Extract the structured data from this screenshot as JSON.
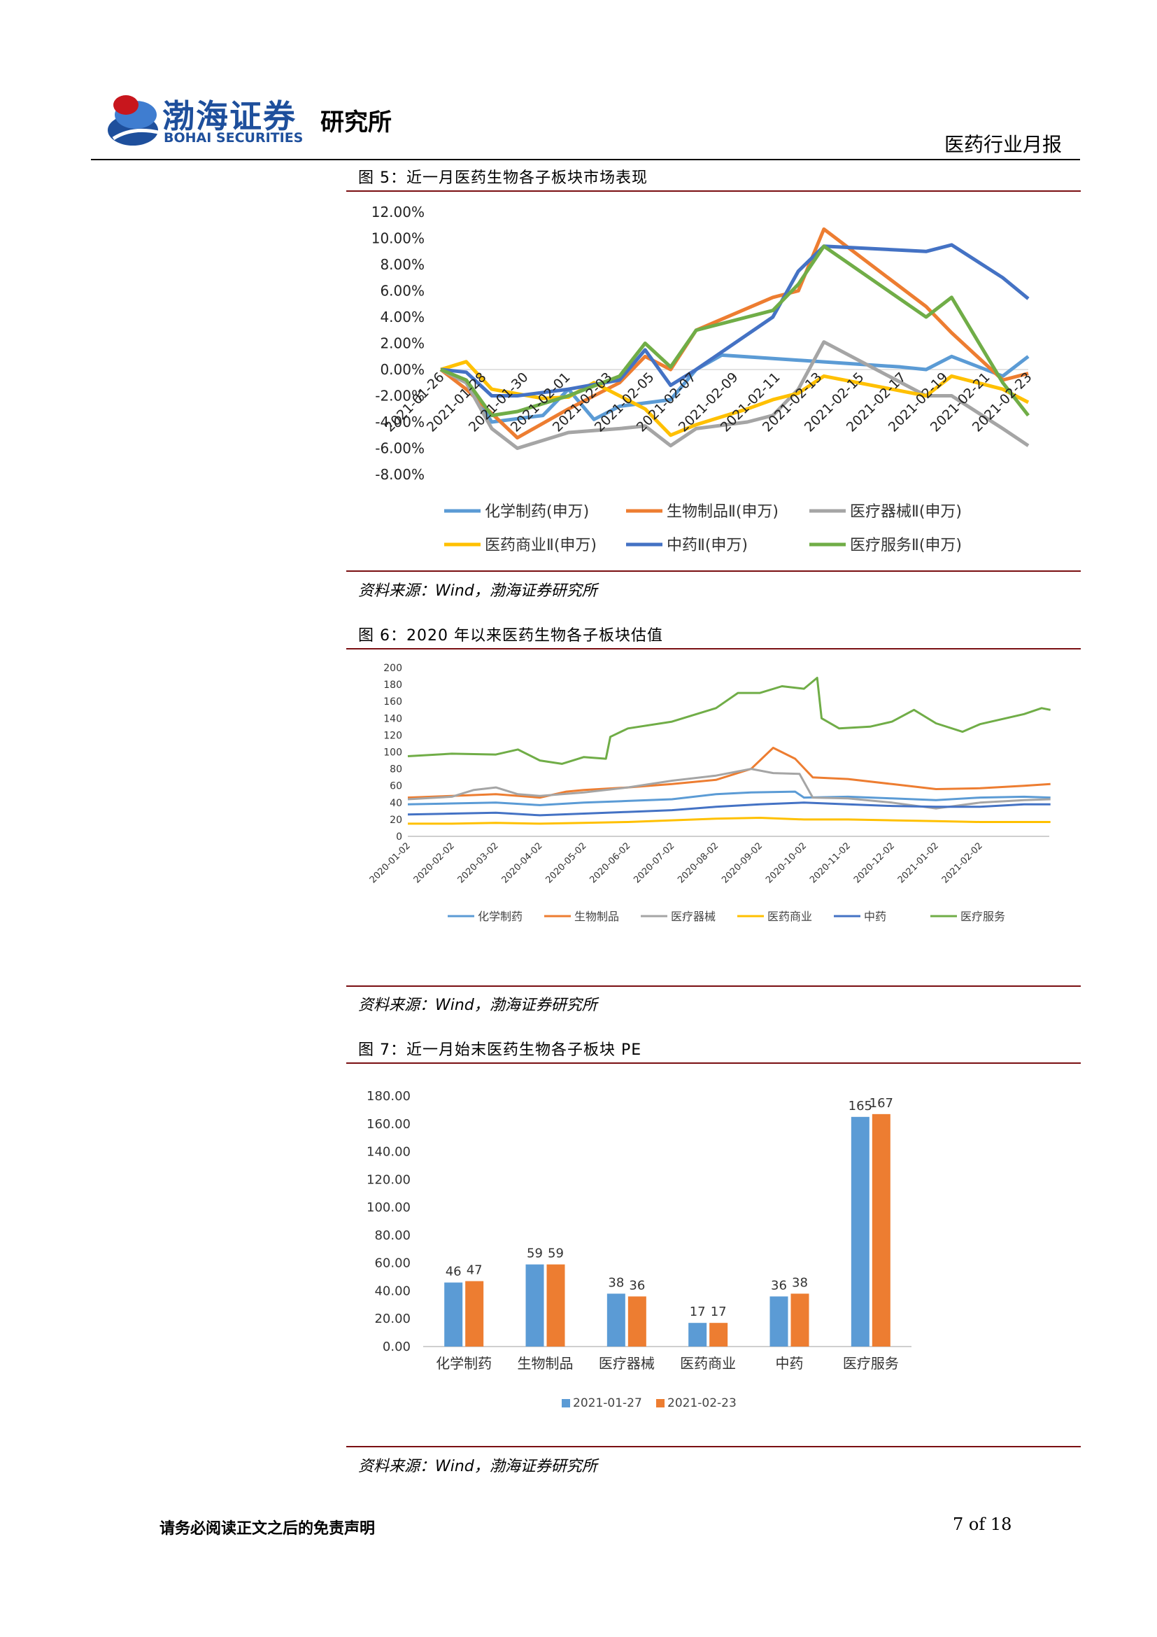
{
  "header": {
    "logo_cn": "渤海证券",
    "logo_en": "BOHAI SECURITIES",
    "institute": "研究所",
    "report_type": "医药行业月报",
    "colors": {
      "logo_blue": "#1e4f9c",
      "logo_red": "#c8161d",
      "rule": "#000000"
    }
  },
  "figures": [
    {
      "title": "图 5：近一月医药生物各子板块市场表现",
      "source": "资料来源：Wind，渤海证券研究所"
    },
    {
      "title": "图 6：2020 年以来医药生物各子板块估值",
      "source": "资料来源：Wind，渤海证券研究所"
    },
    {
      "title": "图 7：近一月始末医药生物各子板块 PE",
      "source": "资料来源：Wind，渤海证券研究所"
    }
  ],
  "footer": {
    "disclaimer": "请务必阅读正文之后的免责声明",
    "page": "7 of 18"
  },
  "chart_data": [
    {
      "type": "line",
      "x": [
        "2021-01-26",
        "2021-01-28",
        "2021-01-30",
        "2021-02-01",
        "2021-02-03",
        "2021-02-05",
        "2021-02-07",
        "2021-02-09",
        "2021-02-11",
        "2021-02-13",
        "2021-02-15",
        "2021-02-17",
        "2021-02-19",
        "2021-02-21",
        "2021-02-23"
      ],
      "x_tick_labels": [
        "2021-01-26",
        "2021-01-28",
        "2021-01-30",
        "2021-02-01",
        "2021-02-03",
        "2021-02-05",
        "2021-02-07",
        "2021-02-09",
        "2021-02-11",
        "2021-02-13",
        "2021-02-15",
        "2021-02-17",
        "2021-02-19",
        "2021-02-21",
        "2021-02-23"
      ],
      "y_tick_labels": [
        "12.00%",
        "10.00%",
        "8.00%",
        "6.00%",
        "4.00%",
        "2.00%",
        "0.00%",
        "-2.00%",
        "-4.00%",
        "-6.00%",
        "-8.00%"
      ],
      "ylim": [
        -8,
        12
      ],
      "grid": false,
      "legend": "bottom",
      "series": [
        {
          "name": "化学制药(申万)",
          "color": "#5b9bd5",
          "points": [
            [
              0,
              0
            ],
            [
              1,
              -1
            ],
            [
              2,
              -4
            ],
            [
              4,
              -3.5
            ],
            [
              5,
              -1.5
            ],
            [
              6,
              -3.8
            ],
            [
              7,
              -2.8
            ],
            [
              9,
              -2.3
            ],
            [
              10,
              0
            ],
            [
              11,
              1.1
            ],
            [
              18,
              0.2
            ],
            [
              19,
              0
            ],
            [
              20,
              1
            ],
            [
              22,
              -0.5
            ],
            [
              23,
              1
            ]
          ]
        },
        {
          "name": "生物制品Ⅱ(申万)",
          "color": "#ed7d31",
          "points": [
            [
              0,
              0
            ],
            [
              1,
              -1.5
            ],
            [
              3,
              -5.2
            ],
            [
              5,
              -3
            ],
            [
              7,
              -1
            ],
            [
              8,
              1
            ],
            [
              9,
              0
            ],
            [
              10,
              3
            ],
            [
              13,
              5.5
            ],
            [
              14,
              6
            ],
            [
              15,
              10.7
            ],
            [
              19,
              4.8
            ],
            [
              20,
              2.8
            ],
            [
              22,
              -0.8
            ],
            [
              23,
              -0.3
            ]
          ]
        },
        {
          "name": "医疗器械Ⅱ(申万)",
          "color": "#a5a5a5",
          "points": [
            [
              0,
              0
            ],
            [
              1,
              -1
            ],
            [
              2,
              -4.5
            ],
            [
              3,
              -6
            ],
            [
              5,
              -4.8
            ],
            [
              7,
              -4.5
            ],
            [
              8,
              -4.3
            ],
            [
              9,
              -5.8
            ],
            [
              10,
              -4.5
            ],
            [
              12,
              -4
            ],
            [
              13,
              -3.5
            ],
            [
              14,
              -1.5
            ],
            [
              15,
              2.1
            ],
            [
              19,
              -2
            ],
            [
              20,
              -2
            ],
            [
              22,
              -4.5
            ],
            [
              23,
              -5.8
            ]
          ]
        },
        {
          "name": "医药商业Ⅱ(申万)",
          "color": "#ffc000",
          "points": [
            [
              0,
              0
            ],
            [
              1,
              0.6
            ],
            [
              2,
              -1.5
            ],
            [
              4,
              -2.2
            ],
            [
              5,
              -2.1
            ],
            [
              6,
              -1
            ],
            [
              8,
              -3
            ],
            [
              9,
              -5
            ],
            [
              10,
              -4.2
            ],
            [
              12,
              -3
            ],
            [
              13,
              -2.3
            ],
            [
              14,
              -1.8
            ],
            [
              15,
              -0.5
            ],
            [
              19,
              -2
            ],
            [
              20,
              -0.5
            ],
            [
              22,
              -1.5
            ],
            [
              23,
              -2.5
            ]
          ]
        },
        {
          "name": "中药Ⅱ(申万)",
          "color": "#4472c4",
          "points": [
            [
              0,
              0
            ],
            [
              1,
              -0.2
            ],
            [
              2,
              -2
            ],
            [
              3,
              -2
            ],
            [
              5,
              -1.5
            ],
            [
              7,
              -0.8
            ],
            [
              8,
              1.5
            ],
            [
              9,
              -1.2
            ],
            [
              10,
              0
            ],
            [
              13,
              4
            ],
            [
              14,
              7.5
            ],
            [
              15,
              9.4
            ],
            [
              16,
              9.3
            ],
            [
              19,
              9
            ],
            [
              20,
              9.5
            ],
            [
              22,
              7
            ],
            [
              23,
              5.4
            ]
          ]
        },
        {
          "name": "医疗服务Ⅱ(申万)",
          "color": "#70ad47",
          "points": [
            [
              0,
              0
            ],
            [
              1,
              -0.8
            ],
            [
              2,
              -3.5
            ],
            [
              3,
              -3.2
            ],
            [
              5,
              -2
            ],
            [
              7,
              -0.5
            ],
            [
              8,
              2
            ],
            [
              9,
              0.2
            ],
            [
              10,
              3
            ],
            [
              13,
              4.5
            ],
            [
              14,
              6.5
            ],
            [
              15,
              9.4
            ],
            [
              19,
              4
            ],
            [
              20,
              5.5
            ],
            [
              22,
              -1
            ],
            [
              23,
              -3.5
            ]
          ]
        }
      ]
    },
    {
      "type": "line",
      "x": [
        "2020-01-02",
        "2020-02-02",
        "2020-03-02",
        "2020-04-02",
        "2020-05-02",
        "2020-06-02",
        "2020-07-02",
        "2020-08-02",
        "2020-09-02",
        "2020-10-02",
        "2020-11-02",
        "2020-12-02",
        "2021-01-02",
        "2021-02-02"
      ],
      "x_tick_labels": [
        "2020-01-02",
        "2020-02-02",
        "2020-03-02",
        "2020-04-02",
        "2020-05-02",
        "2020-06-02",
        "2020-07-02",
        "2020-08-02",
        "2020-09-02",
        "2020-10-02",
        "2020-11-02",
        "2020-12-02",
        "2021-01-02",
        "2021-02-02"
      ],
      "y_tick_labels": [
        "200",
        "180",
        "160",
        "140",
        "120",
        "100",
        "80",
        "60",
        "40",
        "20",
        "0"
      ],
      "ylim": [
        0,
        200
      ],
      "grid": false,
      "legend": "bottom",
      "series": [
        {
          "name": "化学制药",
          "color": "#5b9bd5",
          "points": [
            [
              0,
              38
            ],
            [
              1,
              39
            ],
            [
              2,
              40
            ],
            [
              3,
              37
            ],
            [
              4,
              40
            ],
            [
              5,
              42
            ],
            [
              6,
              44
            ],
            [
              7,
              50
            ],
            [
              7.8,
              52
            ],
            [
              8.8,
              53
            ],
            [
              9,
              46
            ],
            [
              10,
              47
            ],
            [
              11,
              45
            ],
            [
              12,
              43
            ],
            [
              13,
              46
            ],
            [
              14,
              47
            ],
            [
              14.6,
              46
            ]
          ]
        },
        {
          "name": "生物制品",
          "color": "#ed7d31",
          "points": [
            [
              0,
              46
            ],
            [
              1,
              48
            ],
            [
              2,
              50
            ],
            [
              3,
              46
            ],
            [
              3.6,
              53
            ],
            [
              4,
              55
            ],
            [
              5,
              58
            ],
            [
              6,
              62
            ],
            [
              7,
              67
            ],
            [
              7.8,
              80
            ],
            [
              8.3,
              105
            ],
            [
              8.8,
              92
            ],
            [
              9.2,
              70
            ],
            [
              10,
              68
            ],
            [
              11,
              62
            ],
            [
              12,
              56
            ],
            [
              13,
              57
            ],
            [
              14,
              60
            ],
            [
              14.6,
              62
            ]
          ]
        },
        {
          "name": "医疗器械",
          "color": "#a5a5a5",
          "points": [
            [
              0,
              44
            ],
            [
              1,
              47
            ],
            [
              1.5,
              55
            ],
            [
              2,
              58
            ],
            [
              2.5,
              50
            ],
            [
              3,
              48
            ],
            [
              4,
              52
            ],
            [
              5,
              58
            ],
            [
              6,
              66
            ],
            [
              7,
              72
            ],
            [
              7.8,
              80
            ],
            [
              8.3,
              75
            ],
            [
              8.9,
              74
            ],
            [
              9.2,
              46
            ],
            [
              10,
              45
            ],
            [
              11,
              40
            ],
            [
              12,
              33
            ],
            [
              13,
              40
            ],
            [
              14,
              43
            ],
            [
              14.6,
              44
            ]
          ]
        },
        {
          "name": "医药商业",
          "color": "#ffc000",
          "points": [
            [
              0,
              15
            ],
            [
              1,
              15
            ],
            [
              2,
              16
            ],
            [
              3,
              15
            ],
            [
              4,
              16
            ],
            [
              5,
              17
            ],
            [
              6,
              19
            ],
            [
              7,
              21
            ],
            [
              8,
              22
            ],
            [
              9,
              20
            ],
            [
              10,
              20
            ],
            [
              11,
              19
            ],
            [
              12,
              18
            ],
            [
              13,
              17
            ],
            [
              14,
              17
            ],
            [
              14.6,
              17
            ]
          ]
        },
        {
          "name": "中药",
          "color": "#4472c4",
          "points": [
            [
              0,
              26
            ],
            [
              1,
              27
            ],
            [
              2,
              28
            ],
            [
              3,
              25
            ],
            [
              4,
              27
            ],
            [
              5,
              29
            ],
            [
              6,
              31
            ],
            [
              7,
              35
            ],
            [
              8,
              38
            ],
            [
              9,
              40
            ],
            [
              10,
              38
            ],
            [
              11,
              36
            ],
            [
              12,
              35
            ],
            [
              13,
              35
            ],
            [
              14,
              38
            ],
            [
              14.6,
              38
            ]
          ]
        },
        {
          "name": "医疗服务",
          "color": "#70ad47",
          "points": [
            [
              0,
              95
            ],
            [
              1,
              98
            ],
            [
              2,
              97
            ],
            [
              2.5,
              103
            ],
            [
              3,
              90
            ],
            [
              3.5,
              86
            ],
            [
              4,
              94
            ],
            [
              4.5,
              92
            ],
            [
              4.6,
              118
            ],
            [
              5,
              128
            ],
            [
              6,
              136
            ],
            [
              7,
              152
            ],
            [
              7.5,
              170
            ],
            [
              8,
              170
            ],
            [
              8.5,
              178
            ],
            [
              9,
              175
            ],
            [
              9.3,
              188
            ],
            [
              9.4,
              140
            ],
            [
              9.8,
              128
            ],
            [
              10.5,
              130
            ],
            [
              11,
              136
            ],
            [
              11.5,
              150
            ],
            [
              12,
              134
            ],
            [
              12.6,
              124
            ],
            [
              13,
              133
            ],
            [
              14,
              145
            ],
            [
              14.4,
              152
            ],
            [
              14.6,
              150
            ]
          ]
        }
      ]
    },
    {
      "type": "bar",
      "categories": [
        "化学制药",
        "生物制品",
        "医疗器械",
        "医药商业",
        "中药",
        "医疗服务"
      ],
      "y_tick_labels": [
        "180.00",
        "160.00",
        "140.00",
        "120.00",
        "100.00",
        "80.00",
        "60.00",
        "40.00",
        "20.00",
        "0.00"
      ],
      "ylim": [
        0,
        180
      ],
      "grid": false,
      "legend": "bottom",
      "series": [
        {
          "name": "2021-01-27",
          "color": "#5b9bd5",
          "values": [
            46,
            59,
            38,
            17,
            36,
            165
          ]
        },
        {
          "name": "2021-02-23",
          "color": "#ed7d31",
          "values": [
            47,
            59,
            36,
            17,
            38,
            167
          ]
        }
      ]
    }
  ]
}
